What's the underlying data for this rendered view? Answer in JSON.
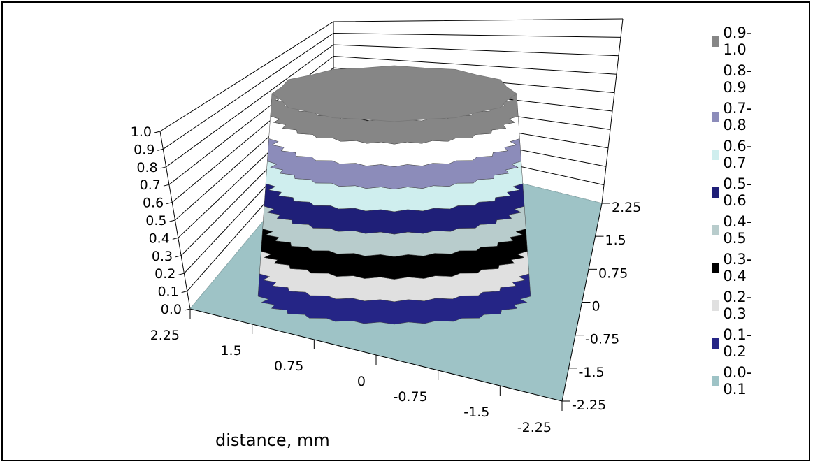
{
  "chart_data": {
    "type": "surface",
    "title": "",
    "zlabel": "",
    "xlabel": "distance, mm",
    "zlim": [
      0.0,
      1.0
    ],
    "z_ticks": [
      "0.0",
      "0.1",
      "0.2",
      "0.3",
      "0.4",
      "0.5",
      "0.6",
      "0.7",
      "0.8",
      "0.9",
      "1.0"
    ],
    "front_axis_ticks": [
      "2.25",
      "1.5",
      "0.75",
      "0",
      "-0.75",
      "-1.5",
      "-2.25"
    ],
    "depth_axis_ticks": [
      "2.25",
      "1.5",
      "0.75",
      "0",
      "-0.75",
      "-1.5",
      "-2.25"
    ],
    "legend": [
      {
        "label": "0.9-1.0",
        "color": "#868686"
      },
      {
        "label": "0.8-0.9",
        "color": "#ffffff"
      },
      {
        "label": "0.7-0.8",
        "color": "#8c8cba"
      },
      {
        "label": "0.6-0.7",
        "color": "#cfeeee"
      },
      {
        "label": "0.5-0.6",
        "color": "#1f1f78"
      },
      {
        "label": "0.4-0.5",
        "color": "#b8cccc"
      },
      {
        "label": "0.3-0.4",
        "color": "#000000"
      },
      {
        "label": "0.2-0.3",
        "color": "#e0e0e0"
      },
      {
        "label": "0.1-0.2",
        "color": "#252586"
      },
      {
        "label": "0.0-0.1",
        "color": "#9ec3c6"
      }
    ],
    "surface": {
      "description_values": "flat-topped cylindrical plateau at z = 1.0 centered at origin, radius about 1.5 mm, dropping to 0.0 outside",
      "plateau_z": 1.0,
      "base_z": 0.0,
      "plateau_radius_mm": 1.5
    }
  }
}
